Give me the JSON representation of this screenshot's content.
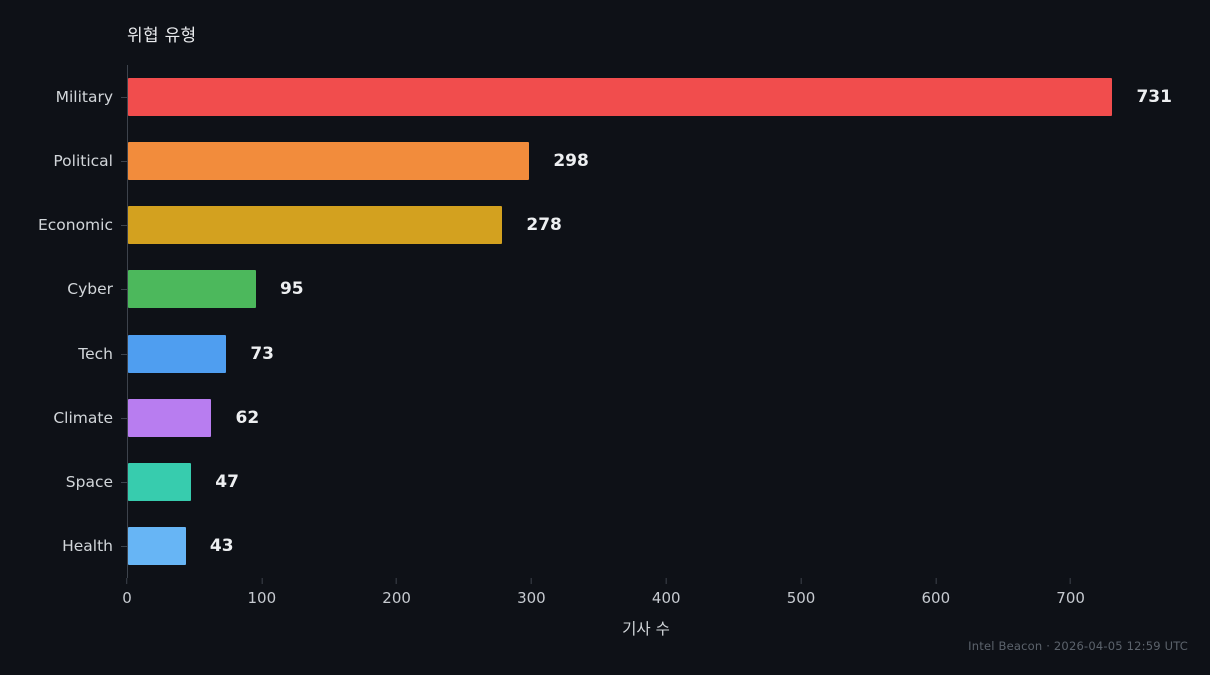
{
  "title": "위협 유형",
  "footer": "Intel Beacon · 2026-04-05 12:59 UTC",
  "chart_data": {
    "type": "bar",
    "orientation": "horizontal",
    "title": "위협 유형",
    "xlabel": "기사 수",
    "categories": [
      "Military",
      "Political",
      "Economic",
      "Cyber",
      "Tech",
      "Climate",
      "Space",
      "Health"
    ],
    "values": [
      731,
      298,
      278,
      95,
      73,
      62,
      47,
      43
    ],
    "colors": [
      "#f14d4d",
      "#f28c3c",
      "#d3a11f",
      "#4cb85c",
      "#4f9ef0",
      "#b87df0",
      "#37ccae",
      "#67b5f5"
    ],
    "xlim": [
      0,
      770
    ],
    "xticks": [
      0,
      100,
      200,
      300,
      400,
      500,
      600,
      700
    ],
    "grid": false,
    "legend": "none",
    "background_color": "#0e1117",
    "label_color": "#d2d6da",
    "value_label_color": "#edeff1",
    "axis_color": "#3d434c"
  }
}
